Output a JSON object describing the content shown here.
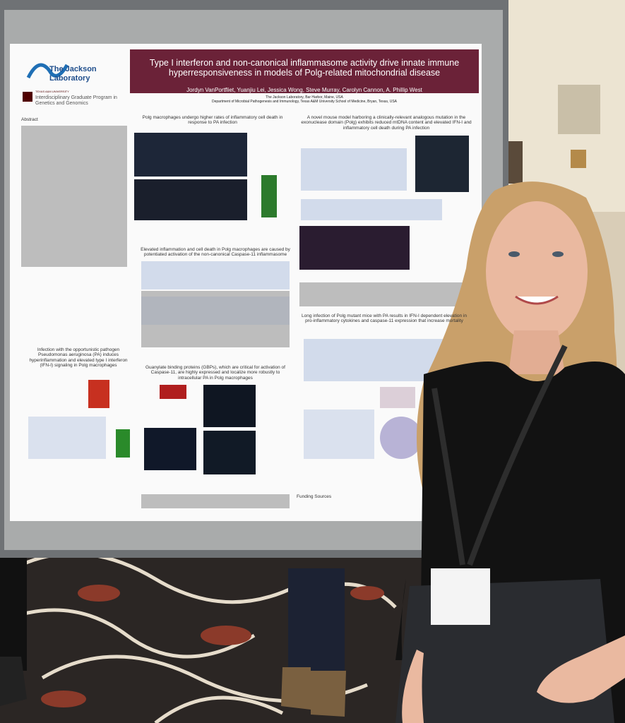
{
  "poster": {
    "logos": {
      "jax": "The Jackson Laboratory",
      "tamu": "TEXAS A&M UNIVERSITY",
      "program": "Interdisciplinary Graduate Program in Genetics and Genomics"
    },
    "title": "Type I interferon and non-canonical inflammasome activity drive innate immune hyperresponsiveness in models of Polg-related mitochondrial disease",
    "authors": [
      "Jordyn VanPortfliet",
      "Yuanjiu Lei",
      "Jessica Wong",
      "Steve Murray",
      "Carolyn Cannon",
      "A. Phillip West"
    ],
    "affiliations": [
      "The Jackson Laboratory, Bar Harbor, Maine, USA",
      "Department of Microbial Pathogenesis and Immunology, Texas A&M University School of Medicine, Bryan, Texas, USA"
    ],
    "sections": [
      {
        "heading": "Abstract"
      },
      {
        "heading": "Polg macrophages undergo higher rates of inflammatory cell death in response to PA infection"
      },
      {
        "heading": "A novel mouse model harboring a clinically-relevant analogous mutation in the exonuclease domain (Polg) exhibits reduced mtDNA content and elevated IFN-I and inflammatory cell death during PA infection"
      },
      {
        "heading": "Elevated inflammation and cell death in Polg macrophages are caused by potentiated activation of the non-canonical Caspase-11 inflammasome"
      },
      {
        "heading": "Infection with the opportunistic pathogen Pseudomonas aeruginosa (PA) induces hyperinflammation and elevated type I interferon (IFN-I) signaling in Polg macrophages"
      },
      {
        "heading": "Guanylate binding proteins (GBPs), which are critical for activation of Caspase-11, are highly expressed and localize more robustly to intracellular PA in Polg macrophages"
      },
      {
        "heading": "Long infection of Polg mutant mice with PA results in IFN-I dependent elevation in pro-inflammatory cytokines and caspase-11 expression that increase mortality"
      },
      {
        "heading": "Funding Sources"
      }
    ]
  }
}
